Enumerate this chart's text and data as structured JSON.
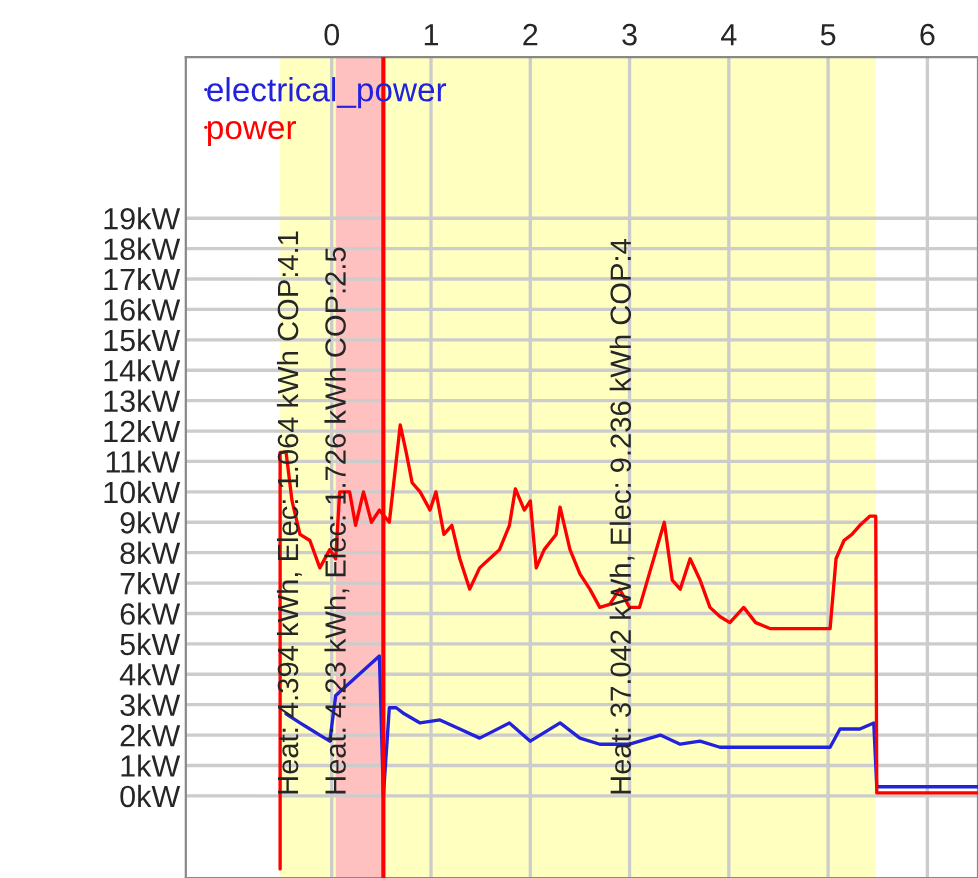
{
  "chart_data": {
    "type": "line",
    "xlim": [
      -1.47,
      6.51
    ],
    "xticks": [
      0,
      1,
      2,
      3,
      4,
      5,
      6
    ],
    "ylim": [
      -2.7,
      24.3
    ],
    "yticks": [
      {
        "value": 0,
        "label": "0kW"
      },
      {
        "value": 1,
        "label": "1kW"
      },
      {
        "value": 2,
        "label": "2kW"
      },
      {
        "value": 3,
        "label": "3kW"
      },
      {
        "value": 4,
        "label": "4kW"
      },
      {
        "value": 5,
        "label": "5kW"
      },
      {
        "value": 6,
        "label": "6kW"
      },
      {
        "value": 7,
        "label": "7kW"
      },
      {
        "value": 8,
        "label": "8kW"
      },
      {
        "value": 9,
        "label": "9kW"
      },
      {
        "value": 10,
        "label": "10kW"
      },
      {
        "value": 11,
        "label": "11kW"
      },
      {
        "value": 12,
        "label": "12kW"
      },
      {
        "value": 13,
        "label": "13kW"
      },
      {
        "value": 14,
        "label": "14kW"
      },
      {
        "value": 15,
        "label": "15kW"
      },
      {
        "value": 16,
        "label": "16kW"
      },
      {
        "value": 17,
        "label": "17kW"
      },
      {
        "value": 18,
        "label": "18kW"
      },
      {
        "value": 19,
        "label": "19kW"
      }
    ],
    "grid": true,
    "legend": "top left",
    "bands": [
      {
        "axis": "x",
        "from": -0.52,
        "to": 5.48,
        "color": "#ffffc0"
      },
      {
        "axis": "x",
        "from": 0.04,
        "to": 0.52,
        "color": "#ffc0c0"
      }
    ],
    "ref_lines": [
      {
        "axis": "x",
        "value": 0.52,
        "color": "#ff0000"
      }
    ],
    "annotations": [
      "Heat: 4.394 kWh, Elec: 1.064 kWh COP:4.1",
      "Heat: 4.23 kWh, Elec: 1.726 kWh COP:2.5",
      "Heat: 37.042 kWh, Elec: 9.236 kWh COP:4"
    ],
    "series": [
      {
        "name": "electrical_power",
        "color": "#2222dd",
        "x": [
          -0.46,
          -0.32,
          -0.22,
          -0.12,
          -0.02,
          0.04,
          0.48,
          0.52,
          0.58,
          0.65,
          0.73,
          0.89,
          1.09,
          1.29,
          1.49,
          1.79,
          2.0,
          2.3,
          2.5,
          2.7,
          3.0,
          3.31,
          3.51,
          3.71,
          3.91,
          4.72,
          5.02,
          5.12,
          5.32,
          5.46,
          5.49,
          6.51
        ],
        "values": [
          2.7,
          2.4,
          2.2,
          2.0,
          1.8,
          3.3,
          4.6,
          0,
          2.9,
          2.9,
          2.7,
          2.4,
          2.5,
          2.2,
          1.9,
          2.4,
          1.8,
          2.4,
          1.9,
          1.7,
          1.7,
          2.0,
          1.7,
          1.8,
          1.6,
          1.6,
          1.6,
          2.2,
          2.2,
          2.4,
          0.3,
          0.3
        ]
      },
      {
        "name": "power",
        "color": "#ff0000",
        "x": [
          -0.52,
          -0.52,
          -0.46,
          -0.4,
          -0.32,
          -0.22,
          -0.12,
          -0.02,
          0.04,
          0.08,
          0.18,
          0.24,
          0.32,
          0.4,
          0.48,
          0.58,
          0.69,
          0.75,
          0.81,
          0.89,
          0.99,
          1.05,
          1.13,
          1.21,
          1.29,
          1.39,
          1.49,
          1.59,
          1.69,
          1.79,
          1.85,
          1.94,
          2.0,
          2.06,
          2.14,
          2.26,
          2.3,
          2.4,
          2.5,
          2.6,
          2.7,
          2.8,
          2.9,
          3.0,
          3.1,
          3.27,
          3.35,
          3.43,
          3.51,
          3.61,
          3.71,
          3.81,
          3.91,
          4.01,
          4.15,
          4.27,
          4.42,
          4.72,
          5.02,
          5.08,
          5.16,
          5.24,
          5.32,
          5.42,
          5.48,
          5.49,
          6.51
        ],
        "values": [
          -2.4,
          11.3,
          11.3,
          9.7,
          8.6,
          8.4,
          7.5,
          8.1,
          7.8,
          10.0,
          10.0,
          8.9,
          10.0,
          9.0,
          9.4,
          9.0,
          12.2,
          11.3,
          10.3,
          10.0,
          9.4,
          10.0,
          8.6,
          8.9,
          7.8,
          6.8,
          7.5,
          7.8,
          8.1,
          8.9,
          10.1,
          9.4,
          9.7,
          7.5,
          8.1,
          8.6,
          9.5,
          8.1,
          7.3,
          6.8,
          6.2,
          6.3,
          6.8,
          6.2,
          6.2,
          8.1,
          9.0,
          7.1,
          6.8,
          7.8,
          7.1,
          6.2,
          5.9,
          5.7,
          6.2,
          5.7,
          5.5,
          5.5,
          5.5,
          7.8,
          8.4,
          8.6,
          8.9,
          9.2,
          9.2,
          0.1,
          0.1
        ]
      }
    ]
  }
}
